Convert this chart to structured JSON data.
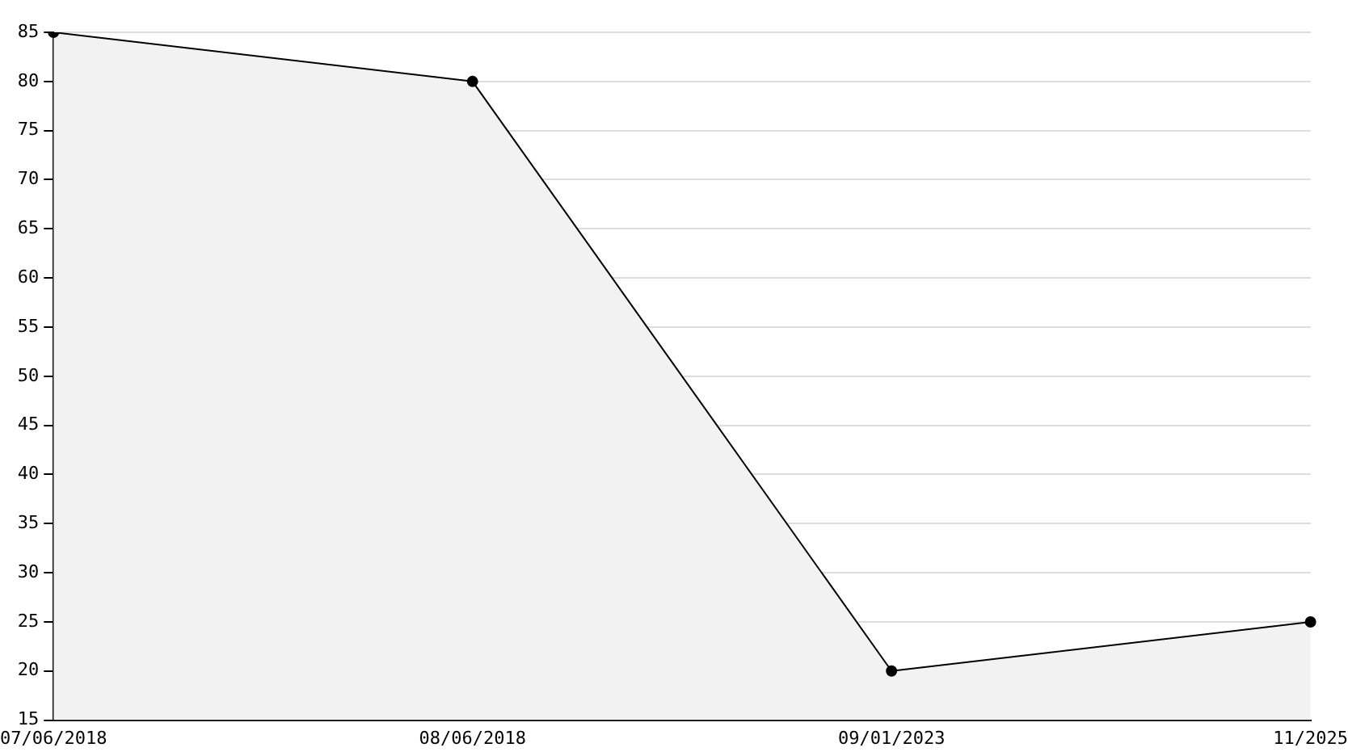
{
  "chart_data": {
    "type": "area",
    "categories": [
      "07/06/2018",
      "08/06/2018",
      "09/01/2023",
      "11/2025"
    ],
    "values": [
      85,
      80,
      20,
      25
    ],
    "color": "#000000",
    "ylim": [
      15,
      85
    ],
    "yticks": [
      15,
      20,
      25,
      30,
      35,
      40,
      45,
      50,
      55,
      60,
      65,
      70,
      75,
      80,
      85
    ],
    "grid": "y",
    "legend": false,
    "marker": "circle",
    "line_style": "solid"
  }
}
